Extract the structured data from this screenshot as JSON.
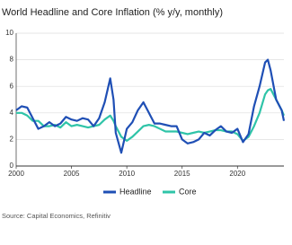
{
  "chart_data": {
    "type": "line",
    "title": "World Headline and Core Inflation (% y/y, monthly)",
    "source": "Source: Capital Economics, Refinitiv",
    "x": [
      2000,
      2000.5,
      2001,
      2001.5,
      2002,
      2002.5,
      2003,
      2003.5,
      2004,
      2004.5,
      2005,
      2005.5,
      2006,
      2006.5,
      2007,
      2007.5,
      2008,
      2008.5,
      2008.8,
      2009,
      2009.5,
      2010,
      2010.5,
      2011,
      2011.5,
      2012,
      2012.5,
      2013,
      2013.5,
      2014,
      2014.5,
      2015,
      2015.5,
      2016,
      2016.5,
      2017,
      2017.5,
      2018,
      2018.5,
      2019,
      2019.5,
      2020,
      2020.5,
      2021,
      2021.5,
      2022,
      2022.5,
      2022.75,
      2023,
      2023.5,
      2024,
      2024.2
    ],
    "series": [
      {
        "name": "Headline",
        "color": "#1f4fb5",
        "values": [
          4.2,
          4.5,
          4.4,
          3.6,
          2.8,
          3.0,
          3.3,
          3.0,
          3.2,
          3.7,
          3.5,
          3.4,
          3.6,
          3.5,
          3.0,
          3.6,
          4.8,
          6.6,
          5.0,
          2.5,
          1.0,
          2.8,
          3.3,
          4.2,
          4.8,
          4.0,
          3.2,
          3.2,
          3.1,
          3.0,
          3.0,
          2.0,
          1.7,
          1.8,
          2.0,
          2.5,
          2.3,
          2.7,
          3.0,
          2.6,
          2.5,
          2.8,
          1.8,
          2.4,
          4.5,
          6.0,
          7.8,
          8.0,
          7.2,
          5.0,
          4.2,
          3.4
        ]
      },
      {
        "name": "Core",
        "color": "#2fc4a8",
        "values": [
          4.0,
          4.0,
          3.8,
          3.4,
          3.4,
          3.0,
          3.0,
          3.1,
          2.9,
          3.3,
          3.0,
          3.1,
          3.0,
          2.9,
          3.0,
          3.1,
          3.5,
          3.8,
          3.4,
          3.0,
          2.2,
          1.9,
          2.2,
          2.6,
          3.0,
          3.1,
          3.0,
          2.8,
          2.6,
          2.6,
          2.6,
          2.5,
          2.4,
          2.5,
          2.6,
          2.5,
          2.6,
          2.7,
          2.7,
          2.6,
          2.6,
          2.4,
          1.9,
          2.2,
          3.0,
          4.0,
          5.4,
          5.7,
          5.8,
          5.0,
          4.2,
          3.8
        ]
      }
    ],
    "xlim": [
      2000,
      2024.2
    ],
    "xticks": [
      2000,
      2005,
      2010,
      2015,
      2020
    ],
    "ylim": [
      0,
      10
    ],
    "yticks": [
      0,
      2,
      4,
      6,
      8,
      10
    ],
    "grid": true
  }
}
